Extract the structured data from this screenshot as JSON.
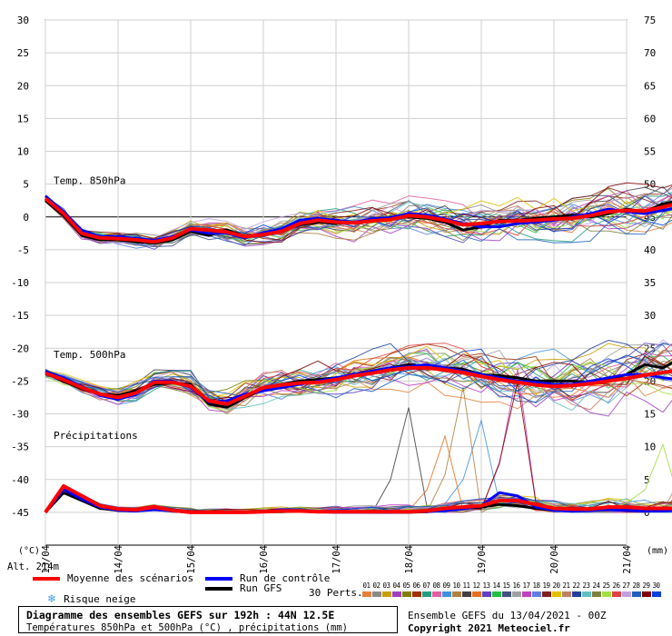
{
  "chart_data": {
    "type": "line",
    "title": "Diagramme des ensembles GEFS sur 192h : 44N 12.5E",
    "subtitle": "Températures 850hPa et 500hPa (°C) , précipitations (mm)",
    "ylabel_left": "(°C)",
    "ylabel_right": "(mm)",
    "ylim_left": [
      -50,
      30
    ],
    "ylim_right": [
      0,
      75
    ],
    "left_ticks": [
      30,
      25,
      20,
      15,
      10,
      5,
      0,
      -5,
      -10,
      -15,
      -20,
      -25,
      -30,
      -35,
      -40,
      -45
    ],
    "right_ticks": [
      75,
      70,
      65,
      60,
      55,
      50,
      45,
      40,
      35,
      30,
      25,
      20,
      15,
      10,
      5,
      0
    ],
    "right_axis_mapping": "right value v (mm) is drawn at left value (v - 45)",
    "x_range_days": [
      0,
      8
    ],
    "x_ticks": [
      {
        "day": 0,
        "label": "13/04"
      },
      {
        "day": 1,
        "label": "14/04"
      },
      {
        "day": 2,
        "label": "15/04"
      },
      {
        "day": 3,
        "label": "16/04"
      },
      {
        "day": 4,
        "label": "17/04"
      },
      {
        "day": 5,
        "label": "18/04"
      },
      {
        "day": 6,
        "label": "19/04"
      },
      {
        "day": 7,
        "label": "20/04"
      },
      {
        "day": 8,
        "label": "21/04"
      }
    ],
    "x_step_days": 0.25,
    "grid": true,
    "altitude": "Alt. 214m",
    "section_labels": [
      {
        "text": "Temp. 850hPa",
        "y": 5
      },
      {
        "text": "Temp. 500hPa",
        "y": -21.5
      },
      {
        "text": "Précipitations",
        "y": -33.8
      }
    ],
    "series": [
      {
        "name": "Moyenne des scénarios",
        "color": "#ff0000",
        "width": 4,
        "values_850": [
          2.8,
          0.5,
          -2.5,
          -3.2,
          -3.3,
          -3.5,
          -3.8,
          -3.2,
          -1.8,
          -2.0,
          -2.3,
          -3.0,
          -2.7,
          -2.2,
          -1.0,
          -0.5,
          -0.8,
          -0.9,
          -0.6,
          -0.4,
          0.2,
          0.0,
          -0.5,
          -1.2,
          -1.0,
          -0.7,
          -0.6,
          -0.5,
          -0.3,
          -0.2,
          0.2,
          0.8,
          1.0,
          0.9,
          1.5,
          2.2,
          3.0,
          3.4,
          3.7,
          4.3,
          3.6
        ],
        "values_500": [
          -23.8,
          -24.8,
          -26.0,
          -27.0,
          -27.5,
          -26.8,
          -25.2,
          -25.2,
          -25.8,
          -28.0,
          -28.5,
          -27.3,
          -26.0,
          -25.6,
          -25.3,
          -25.2,
          -24.8,
          -24.2,
          -23.8,
          -23.3,
          -23.0,
          -23.0,
          -23.3,
          -23.7,
          -24.3,
          -24.8,
          -25.2,
          -25.6,
          -25.8,
          -25.7,
          -25.4,
          -25.0,
          -24.6,
          -24.1,
          -23.7,
          -23.3,
          -23.2,
          -23.3,
          -23.0,
          -22.6,
          -22.4
        ],
        "values_precip": [
          0.0,
          4.0,
          2.5,
          1.0,
          0.5,
          0.4,
          0.8,
          0.3,
          0,
          0,
          0,
          0,
          0.1,
          0.2,
          0.2,
          0.1,
          0.1,
          0.1,
          0.1,
          0.1,
          0.1,
          0.2,
          0.6,
          0.8,
          1.0,
          1.8,
          1.8,
          1.2,
          0.6,
          0.5,
          0.5,
          0.8,
          0.8,
          0.6,
          0.6,
          0.6,
          0.9,
          0.8,
          0.6,
          0.3,
          0.0
        ]
      },
      {
        "name": "Run de contrôle",
        "color": "#0000ff",
        "width": 3,
        "values_850": [
          3.2,
          0.8,
          -2.0,
          -3.0,
          -3.0,
          -3.3,
          -3.6,
          -3.0,
          -2.0,
          -2.5,
          -2.5,
          -3.2,
          -2.4,
          -1.8,
          -0.5,
          -0.2,
          -0.5,
          -0.8,
          -0.3,
          -0.1,
          0.5,
          0.3,
          -0.3,
          -1.0,
          -1.5,
          -1.5,
          -1.0,
          -0.8,
          -0.5,
          0.0,
          0.5,
          1.2,
          0.8,
          0.5,
          1.0,
          1.5,
          2.0,
          2.8,
          3.5,
          3.3,
          2.5
        ],
        "values_500": [
          -23.5,
          -24.5,
          -25.8,
          -27.2,
          -27.8,
          -27.0,
          -25.0,
          -25.0,
          -26.0,
          -28.2,
          -28.0,
          -27.0,
          -26.5,
          -26.0,
          -25.5,
          -25.0,
          -24.5,
          -24.0,
          -23.5,
          -23.0,
          -22.8,
          -22.5,
          -23.0,
          -23.5,
          -24.0,
          -24.5,
          -25.0,
          -25.2,
          -25.5,
          -25.5,
          -25.0,
          -24.5,
          -24.0,
          -24.0,
          -24.5,
          -24.8,
          -24.5,
          -24.0,
          -24.5,
          -25.5,
          -26.5
        ],
        "values_precip": [
          0.0,
          3.5,
          2.0,
          0.8,
          0.3,
          0.2,
          0.4,
          0.2,
          0,
          0,
          0,
          0,
          0.1,
          0.4,
          0.2,
          0.1,
          0,
          0,
          0,
          0,
          0.1,
          0.1,
          0.3,
          0.5,
          1.0,
          3.0,
          2.5,
          0.8,
          0.3,
          0.2,
          0.3,
          0.4,
          0.3,
          0.2,
          0.2,
          0.3,
          0.5,
          0.6,
          0.4,
          0.2,
          0.0
        ]
      },
      {
        "name": "Run GFS",
        "color": "#000000",
        "width": 3,
        "values_850": [
          2.5,
          0.2,
          -2.8,
          -3.5,
          -3.5,
          -3.8,
          -4.0,
          -3.5,
          -2.2,
          -2.8,
          -2.0,
          -3.0,
          -2.8,
          -2.0,
          -1.2,
          -0.8,
          -1.0,
          -0.8,
          -0.5,
          -0.2,
          0.0,
          -0.2,
          -0.8,
          -2.0,
          -1.5,
          -0.5,
          -0.5,
          -0.2,
          0.0,
          0.3,
          0.0,
          0.5,
          1.2,
          0.8,
          2.0,
          2.5,
          3.5,
          4.0,
          5.0,
          5.5,
          5.0
        ],
        "values_500": [
          -23.8,
          -25.0,
          -26.2,
          -27.0,
          -27.2,
          -26.5,
          -25.5,
          -25.3,
          -25.5,
          -28.5,
          -29.0,
          -27.5,
          -26.2,
          -25.5,
          -25.0,
          -24.8,
          -24.5,
          -24.0,
          -23.5,
          -23.0,
          -22.5,
          -22.8,
          -23.0,
          -23.2,
          -24.0,
          -24.2,
          -24.5,
          -25.0,
          -25.0,
          -25.0,
          -25.2,
          -24.8,
          -24.0,
          -22.5,
          -23.0,
          -21.5,
          -22.0,
          -21.8,
          -22.5,
          -23.5,
          -23.0
        ],
        "values_precip": [
          0.0,
          3.0,
          1.8,
          0.6,
          0.3,
          0.2,
          0.5,
          0.2,
          0,
          0,
          0,
          0,
          0.1,
          0.1,
          0.2,
          0.1,
          0.1,
          0.1,
          0,
          0,
          0,
          0.1,
          0.4,
          0.6,
          0.8,
          1.2,
          1.0,
          0.6,
          0.3,
          0.3,
          0.5,
          0.8,
          0.6,
          0.5,
          0.4,
          0.5,
          0.8,
          0.6,
          0.4,
          0.2,
          0.0
        ]
      }
    ]
  },
  "legend": {
    "mean": "Moyenne des scénarios",
    "control": "Run de contrôle",
    "gfs": "Run GFS",
    "snow": "Risque neige",
    "snow_icon": "snowflake-icon",
    "perts_label": "30 Perts.",
    "colors": {
      "mean": "#ff0000",
      "control": "#0000ff",
      "gfs": "#000000",
      "snow": "#3aa0e8"
    }
  },
  "members": [
    {
      "num": "01",
      "color": "#e8803a"
    },
    {
      "num": "02",
      "color": "#8a8a8a"
    },
    {
      "num": "03",
      "color": "#c8a000"
    },
    {
      "num": "04",
      "color": "#a040c0"
    },
    {
      "num": "05",
      "color": "#808000"
    },
    {
      "num": "06",
      "color": "#a03000"
    },
    {
      "num": "07",
      "color": "#20a080"
    },
    {
      "num": "08",
      "color": "#e060a0"
    },
    {
      "num": "09",
      "color": "#4090e0"
    },
    {
      "num": "10",
      "color": "#b08040"
    },
    {
      "num": "11",
      "color": "#404040"
    },
    {
      "num": "12",
      "color": "#e87020"
    },
    {
      "num": "13",
      "color": "#6040c0"
    },
    {
      "num": "14",
      "color": "#20c040"
    },
    {
      "num": "15",
      "color": "#405080"
    },
    {
      "num": "16",
      "color": "#a0a0a0"
    },
    {
      "num": "17",
      "color": "#c040c0"
    },
    {
      "num": "18",
      "color": "#6080e0"
    },
    {
      "num": "19",
      "color": "#802020"
    },
    {
      "num": "20",
      "color": "#e0c000"
    },
    {
      "num": "21",
      "color": "#c08060"
    },
    {
      "num": "22",
      "color": "#2040a0"
    },
    {
      "num": "23",
      "color": "#60c0c0"
    },
    {
      "num": "24",
      "color": "#808040"
    },
    {
      "num": "25",
      "color": "#a0e040"
    },
    {
      "num": "26",
      "color": "#e04040"
    },
    {
      "num": "27",
      "color": "#c0a0e0"
    },
    {
      "num": "28",
      "color": "#2060c0"
    },
    {
      "num": "29",
      "color": "#800000"
    },
    {
      "num": "30",
      "color": "#0040e0"
    }
  ],
  "title_box": {
    "line1": "Diagramme des ensembles GEFS sur 192h : 44N 12.5E",
    "line2": "Températures 850hPa et 500hPa (°C) , précipitations (mm)"
  },
  "credit": {
    "run": "Ensemble GEFS du 13/04/2021 - 00Z",
    "copyright": "Copyright 2021 Meteociel.fr"
  }
}
